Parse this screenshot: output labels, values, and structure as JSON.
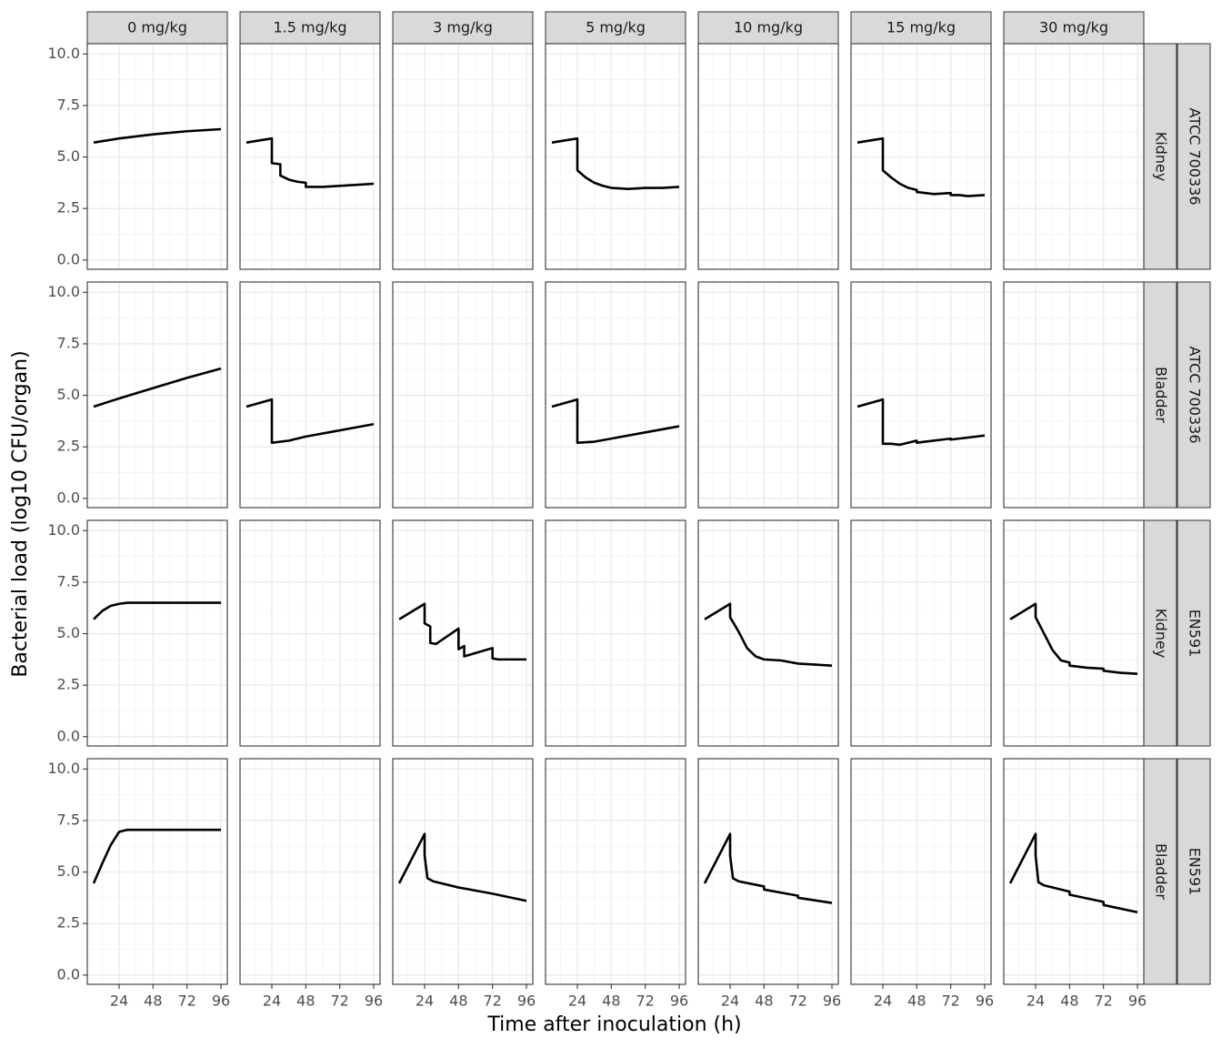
{
  "chart_data": {
    "type": "line",
    "xlabel": "Time after inoculation (h)",
    "ylabel": "Bacterial load (log10 CFU/organ)",
    "columns": [
      "0 mg/kg",
      "1.5 mg/kg",
      "3 mg/kg",
      "5 mg/kg",
      "10 mg/kg",
      "15 mg/kg",
      "30 mg/kg"
    ],
    "xlim": [
      1.5,
      100.5
    ],
    "xticks": [
      24,
      48,
      72,
      96
    ],
    "ylim": [
      -0.45,
      10.5
    ],
    "yticks": [
      {
        "value": 0,
        "label": "0.0"
      },
      2.5,
      {
        "value": 5,
        "label": "5.0"
      },
      7.5,
      {
        "value": 10,
        "label": "10.0"
      }
    ],
    "grid": true,
    "color": "#000000",
    "rows": [
      {
        "strain": "ATCC 700336",
        "organ": "Kidney",
        "panels": [
          {
            "x": [
              6,
              24,
              48,
              72,
              96
            ],
            "values": [
              5.7,
              5.9,
              6.1,
              6.25,
              6.35
            ]
          },
          {
            "x": [
              6,
              24,
              24,
              30,
              30,
              36,
              42,
              48,
              48,
              60,
              72,
              84,
              96
            ],
            "values": [
              5.7,
              5.9,
              4.7,
              4.65,
              4.1,
              3.9,
              3.8,
              3.75,
              3.55,
              3.55,
              3.6,
              3.65,
              3.7
            ]
          },
          null,
          {
            "x": [
              6,
              24,
              24,
              30,
              36,
              42,
              48,
              60,
              72,
              84,
              96
            ],
            "values": [
              5.7,
              5.9,
              4.35,
              4.0,
              3.75,
              3.6,
              3.5,
              3.45,
              3.5,
              3.5,
              3.55
            ]
          },
          null,
          {
            "x": [
              6,
              24,
              24,
              30,
              36,
              42,
              48,
              48,
              54,
              60,
              72,
              72,
              78,
              84,
              96
            ],
            "values": [
              5.7,
              5.9,
              4.35,
              4.0,
              3.7,
              3.5,
              3.4,
              3.3,
              3.25,
              3.2,
              3.25,
              3.15,
              3.15,
              3.1,
              3.15
            ]
          },
          null
        ]
      },
      {
        "strain": "ATCC 700336",
        "organ": "Bladder",
        "panels": [
          {
            "x": [
              6,
              24,
              48,
              72,
              96
            ],
            "values": [
              4.45,
              4.85,
              5.35,
              5.85,
              6.3
            ]
          },
          {
            "x": [
              6,
              24,
              24,
              36,
              48,
              72,
              96
            ],
            "values": [
              4.45,
              4.8,
              2.7,
              2.8,
              3.0,
              3.3,
              3.6
            ]
          },
          null,
          {
            "x": [
              6,
              24,
              24,
              36,
              48,
              72,
              96
            ],
            "values": [
              4.45,
              4.8,
              2.7,
              2.75,
              2.9,
              3.2,
              3.5
            ]
          },
          null,
          {
            "x": [
              6,
              24,
              24,
              30,
              36,
              48,
              48,
              72,
              72,
              96
            ],
            "values": [
              4.45,
              4.8,
              2.65,
              2.65,
              2.6,
              2.8,
              2.7,
              2.9,
              2.85,
              3.05
            ]
          },
          null
        ]
      },
      {
        "strain": "EN591",
        "organ": "Kidney",
        "panels": [
          {
            "x": [
              6,
              12,
              18,
              24,
              30,
              96
            ],
            "values": [
              5.7,
              6.1,
              6.35,
              6.45,
              6.5,
              6.5
            ]
          },
          null,
          {
            "x": [
              6,
              24,
              24,
              28,
              28,
              32,
              48,
              48,
              52,
              52,
              72,
              72,
              76,
              96
            ],
            "values": [
              5.7,
              6.45,
              5.5,
              5.35,
              4.55,
              4.5,
              5.25,
              4.25,
              4.4,
              3.9,
              4.3,
              3.8,
              3.75,
              3.75
            ]
          },
          null,
          {
            "x": [
              6,
              24,
              24,
              30,
              36,
              42,
              48,
              60,
              72,
              84,
              96
            ],
            "values": [
              5.7,
              6.45,
              5.8,
              5.1,
              4.3,
              3.9,
              3.75,
              3.7,
              3.55,
              3.5,
              3.45
            ]
          },
          null,
          {
            "x": [
              6,
              24,
              24,
              30,
              36,
              42,
              48,
              48,
              60,
              72,
              72,
              84,
              96
            ],
            "values": [
              5.7,
              6.45,
              5.8,
              5.0,
              4.2,
              3.7,
              3.6,
              3.45,
              3.35,
              3.3,
              3.2,
              3.1,
              3.05
            ]
          }
        ]
      },
      {
        "strain": "EN591",
        "organ": "Bladder",
        "panels": [
          {
            "x": [
              6,
              12,
              18,
              24,
              30,
              96
            ],
            "values": [
              4.45,
              5.4,
              6.3,
              6.95,
              7.05,
              7.05
            ]
          },
          null,
          {
            "x": [
              6,
              24,
              24,
              26,
              30,
              48,
              72,
              96
            ],
            "values": [
              4.45,
              6.85,
              5.8,
              4.7,
              4.55,
              4.25,
              3.95,
              3.6
            ]
          },
          null,
          {
            "x": [
              6,
              24,
              24,
              26,
              30,
              48,
              48,
              72,
              72,
              96
            ],
            "values": [
              4.45,
              6.85,
              5.8,
              4.7,
              4.55,
              4.3,
              4.15,
              3.85,
              3.75,
              3.5
            ]
          },
          null,
          {
            "x": [
              6,
              24,
              24,
              26,
              30,
              48,
              48,
              72,
              72,
              96
            ],
            "values": [
              4.45,
              6.85,
              5.8,
              4.5,
              4.35,
              4.05,
              3.9,
              3.55,
              3.4,
              3.05
            ]
          }
        ]
      }
    ]
  }
}
